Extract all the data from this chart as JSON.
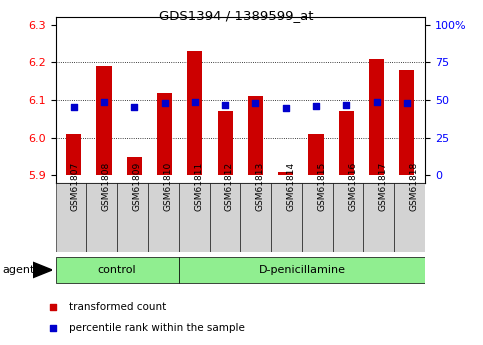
{
  "title": "GDS1394 / 1389599_at",
  "samples": [
    "GSM61807",
    "GSM61808",
    "GSM61809",
    "GSM61810",
    "GSM61811",
    "GSM61812",
    "GSM61813",
    "GSM61814",
    "GSM61815",
    "GSM61816",
    "GSM61817",
    "GSM61818"
  ],
  "red_values": [
    6.01,
    6.19,
    5.95,
    6.12,
    6.23,
    6.07,
    6.11,
    5.91,
    6.01,
    6.07,
    6.21,
    6.18
  ],
  "blue_values": [
    6.082,
    6.095,
    6.082,
    6.093,
    6.095,
    6.087,
    6.092,
    6.079,
    6.084,
    6.087,
    6.095,
    6.091
  ],
  "baseline": 5.9,
  "ylim": [
    5.88,
    6.32
  ],
  "yticks_left": [
    5.9,
    6.0,
    6.1,
    6.2,
    6.3
  ],
  "yticks_right_vals": [
    5.9,
    6.0,
    6.1,
    6.2,
    6.3
  ],
  "yticks_right_labels": [
    "0",
    "25",
    "50",
    "75",
    "100%"
  ],
  "ctrl_count": 4,
  "dpen_count": 8,
  "group_color": "#90ee90",
  "tick_bg_color": "#d3d3d3",
  "bar_color": "#cc0000",
  "dot_color": "#0000cc",
  "bar_width": 0.5,
  "dot_size": 25,
  "legend_items": [
    {
      "color": "#cc0000",
      "label": "transformed count"
    },
    {
      "color": "#0000cc",
      "label": "percentile rank within the sample"
    }
  ]
}
